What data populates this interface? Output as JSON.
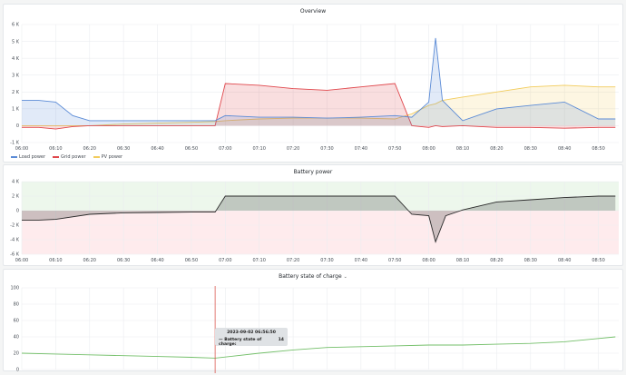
{
  "colors": {
    "load": "#5b8bd6",
    "grid": "#e0474c",
    "pv": "#f2cc5c",
    "battery": "#2a2a2a",
    "soc": "#73bf69",
    "cursor": "#d4433a"
  },
  "time_ticks": [
    "06:00",
    "06:10",
    "06:20",
    "06:30",
    "06:40",
    "06:50",
    "07:00",
    "07:10",
    "07:20",
    "07:30",
    "07:40",
    "07:50",
    "08:00",
    "08:10",
    "08:20",
    "08:30",
    "08:40",
    "08:50"
  ],
  "overview": {
    "title": "Overview",
    "y_ticks": [
      "-1 K",
      "0",
      "1 K",
      "2 K",
      "3 K",
      "4 K",
      "5 K",
      "6 K"
    ],
    "legend": [
      {
        "label": "Load power",
        "color": "#5b8bd6"
      },
      {
        "label": "Grid power",
        "color": "#e0474c"
      },
      {
        "label": "PV power",
        "color": "#f2cc5c"
      }
    ]
  },
  "battery_power": {
    "title": "Battery power",
    "y_ticks": [
      "-6 K",
      "-4 K",
      "-2 K",
      "0",
      "2 K",
      "4 K"
    ]
  },
  "soc": {
    "title": "Battery state of charge",
    "title_chevron": "⌄",
    "y_ticks": [
      "0",
      "20",
      "40",
      "60",
      "80",
      "100"
    ],
    "tooltip": {
      "time": "2023-09-02 06:56:50",
      "label": "— Battery state of charge:",
      "value": "14"
    }
  },
  "chart_data": [
    {
      "type": "area",
      "title": "Overview",
      "x": [
        "06:00",
        "06:05",
        "06:10",
        "06:15",
        "06:20",
        "06:25",
        "06:30",
        "06:40",
        "06:50",
        "06:57",
        "07:00",
        "07:10",
        "07:20",
        "07:30",
        "07:40",
        "07:50",
        "07:55",
        "08:00",
        "08:02",
        "08:04",
        "08:10",
        "08:20",
        "08:30",
        "08:40",
        "08:50",
        "08:55"
      ],
      "series": [
        {
          "name": "Load power",
          "values": [
            1500,
            1500,
            1400,
            600,
            300,
            300,
            300,
            300,
            300,
            300,
            600,
            500,
            500,
            450,
            500,
            600,
            500,
            1400,
            5200,
            1500,
            300,
            1000,
            1200,
            1400,
            400,
            400
          ]
        },
        {
          "name": "Grid power",
          "values": [
            -100,
            -100,
            -200,
            -50,
            0,
            0,
            0,
            0,
            0,
            0,
            2500,
            2400,
            2200,
            2100,
            2300,
            2500,
            0,
            -100,
            0,
            -50,
            0,
            -100,
            -100,
            -150,
            -100,
            -100
          ]
        },
        {
          "name": "PV power",
          "values": [
            0,
            0,
            0,
            0,
            0,
            50,
            100,
            150,
            200,
            250,
            300,
            400,
            450,
            450,
            450,
            400,
            700,
            1200,
            1300,
            1500,
            1700,
            2000,
            2300,
            2400,
            2300,
            2300
          ]
        }
      ],
      "ylim": [
        -1000,
        6000
      ],
      "grid": true,
      "legend_position": "bottom-left"
    },
    {
      "type": "area",
      "title": "Battery power",
      "x": [
        "06:00",
        "06:05",
        "06:10",
        "06:20",
        "06:30",
        "06:40",
        "06:50",
        "06:57",
        "07:00",
        "07:10",
        "07:20",
        "07:30",
        "07:40",
        "07:50",
        "07:55",
        "08:00",
        "08:02",
        "08:05",
        "08:10",
        "08:20",
        "08:30",
        "08:40",
        "08:50",
        "08:55"
      ],
      "series": [
        {
          "name": "",
          "values": [
            -1300,
            -1300,
            -1200,
            -500,
            -300,
            -250,
            -200,
            -200,
            2000,
            2000,
            2000,
            2000,
            2000,
            2000,
            -500,
            -700,
            -4300,
            -700,
            100,
            1200,
            1500,
            1800,
            2000,
            2000
          ]
        }
      ],
      "ylim": [
        -6000,
        4000
      ],
      "grid": true
    },
    {
      "type": "line",
      "title": "Battery state of charge",
      "x": [
        "06:00",
        "06:10",
        "06:20",
        "06:30",
        "06:40",
        "06:50",
        "06:57",
        "07:10",
        "07:20",
        "07:30",
        "07:40",
        "07:50",
        "08:00",
        "08:10",
        "08:20",
        "08:30",
        "08:40",
        "08:50",
        "08:55"
      ],
      "series": [
        {
          "name": "Battery state of charge",
          "values": [
            20,
            19,
            18,
            17,
            16,
            15,
            14,
            20,
            24,
            27,
            28,
            29,
            30,
            30,
            31,
            32,
            34,
            38,
            40
          ]
        }
      ],
      "ylim": [
        0,
        100
      ],
      "grid": true
    }
  ]
}
